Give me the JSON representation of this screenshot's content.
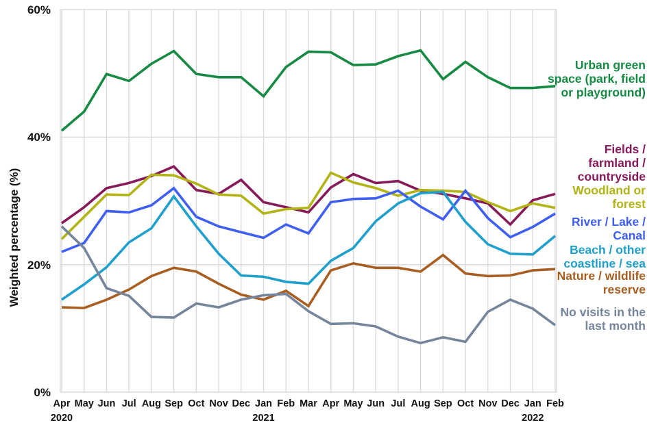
{
  "y_axis": {
    "title": "Weighted percentage (%)",
    "ticks": [
      {
        "value": 0,
        "label": "0%"
      },
      {
        "value": 20,
        "label": "20%"
      },
      {
        "value": 40,
        "label": "40%"
      },
      {
        "value": 60,
        "label": "60%"
      }
    ]
  },
  "x_axis": {
    "months": [
      "Apr",
      "May",
      "Jun",
      "Jul",
      "Aug",
      "Sep",
      "Oct",
      "Nov",
      "Dec",
      "Jan",
      "Feb",
      "Mar",
      "Apr",
      "May",
      "Jun",
      "Jul",
      "Aug",
      "Sep",
      "Oct",
      "Nov",
      "Dec",
      "Jan",
      "Feb"
    ],
    "years": [
      {
        "label": "2020",
        "month_index": 0
      },
      {
        "label": "2021",
        "month_index": 9
      },
      {
        "label": "2022",
        "month_index": 21
      }
    ]
  },
  "chart_data": {
    "type": "line",
    "title": "",
    "xlabel": "",
    "ylabel": "Weighted percentage (%)",
    "ylim": [
      0,
      60
    ],
    "grid": "vertical line per month; horizontal lines every 20%",
    "legend_position": "right, colored labels aligned to line ends",
    "x": [
      "Apr 2020",
      "May 2020",
      "Jun 2020",
      "Jul 2020",
      "Aug 2020",
      "Sep 2020",
      "Oct 2020",
      "Nov 2020",
      "Dec 2020",
      "Jan 2021",
      "Feb 2021",
      "Mar 2021",
      "Apr 2021",
      "May 2021",
      "Jun 2021",
      "Jul 2021",
      "Aug 2021",
      "Sep 2021",
      "Oct 2021",
      "Nov 2021",
      "Dec 2021",
      "Jan 2022",
      "Feb 2022"
    ],
    "series": [
      {
        "name": "Urban green space (park, field or playground)",
        "legend_lines": [
          "Urban green",
          "space (park, field",
          "or playground)"
        ],
        "color": "#168a43",
        "values": [
          41.0,
          44.0,
          49.9,
          48.8,
          51.5,
          53.5,
          49.9,
          49.4,
          49.4,
          46.4,
          51.0,
          53.4,
          53.3,
          51.3,
          51.4,
          52.7,
          53.6,
          49.1,
          51.8,
          49.4,
          47.7,
          47.7,
          48.0
        ]
      },
      {
        "name": "Fields / farmland / countryside",
        "legend_lines": [
          "Fields /",
          "farmland /",
          "countryside"
        ],
        "color": "#871a5b",
        "values": [
          26.5,
          29.0,
          32.0,
          32.8,
          33.9,
          35.4,
          31.7,
          31.1,
          33.3,
          29.8,
          29.0,
          28.2,
          32.1,
          34.2,
          32.8,
          33.1,
          31.6,
          31.1,
          30.4,
          29.6,
          26.3,
          30.1,
          31.1
        ]
      },
      {
        "name": "Woodland or forest",
        "legend_lines": [
          "Woodland or",
          "forest"
        ],
        "color": "#b2b416",
        "values": [
          24.0,
          27.5,
          31.0,
          30.9,
          34.1,
          34.0,
          32.7,
          31.0,
          30.8,
          28.0,
          28.7,
          28.9,
          34.4,
          32.9,
          32.0,
          30.8,
          31.7,
          31.6,
          31.4,
          29.8,
          28.4,
          29.6,
          28.9
        ]
      },
      {
        "name": "River / Lake / Canal",
        "legend_lines": [
          "River / Lake /",
          "Canal"
        ],
        "color": "#3f5ff2",
        "values": [
          22.0,
          23.4,
          28.4,
          28.2,
          29.3,
          32.0,
          27.5,
          26.0,
          25.1,
          24.2,
          26.3,
          24.9,
          29.8,
          30.3,
          30.4,
          31.6,
          29.1,
          27.1,
          31.6,
          27.3,
          24.3,
          25.9,
          28.0
        ]
      },
      {
        "name": "Beach / other coastline / sea",
        "legend_lines": [
          "Beach / other",
          "coastline / sea"
        ],
        "color": "#1fa0cc",
        "values": [
          14.5,
          16.9,
          19.6,
          23.5,
          25.7,
          30.7,
          26.0,
          21.7,
          18.3,
          18.1,
          17.3,
          17.0,
          20.6,
          22.6,
          26.8,
          29.6,
          31.2,
          31.4,
          26.7,
          23.2,
          21.7,
          21.6,
          24.5
        ]
      },
      {
        "name": "Nature / wildlife reserve",
        "legend_lines": [
          "Nature / wildlife",
          "reserve"
        ],
        "color": "#a85e21",
        "values": [
          13.3,
          13.2,
          14.5,
          16.1,
          18.2,
          19.5,
          18.9,
          17.0,
          15.3,
          14.5,
          15.9,
          13.5,
          19.1,
          20.2,
          19.5,
          19.5,
          18.9,
          21.5,
          18.6,
          18.2,
          18.3,
          19.1,
          19.3
        ]
      },
      {
        "name": "No visits in the last month",
        "legend_lines": [
          "No visits in the",
          "last month"
        ],
        "color": "#75859c",
        "values": [
          26.0,
          22.6,
          16.3,
          15.1,
          11.8,
          11.7,
          13.9,
          13.3,
          14.5,
          15.2,
          15.4,
          12.7,
          10.7,
          10.8,
          10.3,
          8.7,
          7.7,
          8.6,
          7.9,
          12.6,
          14.5,
          13.1,
          10.5
        ]
      }
    ]
  },
  "colors": {
    "gridline": "#d9d9d9",
    "axis_text": "#111111",
    "background": "#ffffff"
  }
}
